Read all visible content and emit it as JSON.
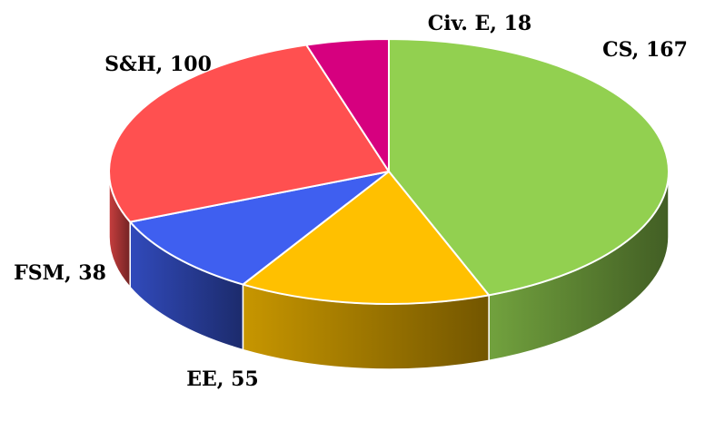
{
  "chart_data": {
    "type": "pie",
    "style": "3d",
    "title": "",
    "legend": "none",
    "slices": [
      {
        "name": "CS",
        "value": 167,
        "label": "CS, 167",
        "color": "#92d050"
      },
      {
        "name": "EE",
        "value": 55,
        "label": "EE, 55",
        "color": "#ffc000"
      },
      {
        "name": "FSM",
        "value": 38,
        "label": "FSM, 38",
        "color": "#3f5ff0"
      },
      {
        "name": "S&H",
        "value": 100,
        "label": "S&H, 100",
        "color": "#ff5050"
      },
      {
        "name": "Civ. E",
        "value": 18,
        "label": "Civ. E, 18",
        "color": "#d6007f"
      }
    ]
  }
}
